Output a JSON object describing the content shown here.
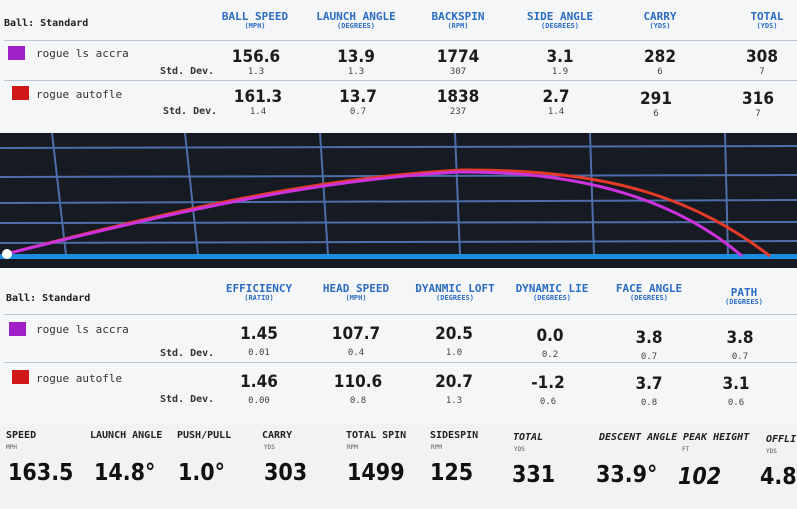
{
  "ball_table": {
    "title": "Ball: Standard",
    "headers": [
      {
        "label": "BALL SPEED",
        "unit": "(MPH)"
      },
      {
        "label": "LAUNCH ANGLE",
        "unit": "(DEGREES)"
      },
      {
        "label": "BACKSPIN",
        "unit": "(RPM)"
      },
      {
        "label": "SIDE ANGLE",
        "unit": "(DEGREES)"
      },
      {
        "label": "CARRY",
        "unit": "(YDS)"
      },
      {
        "label": "TOTAL",
        "unit": "(YDS)"
      }
    ],
    "std_label": "Std. Dev.",
    "rows": [
      {
        "name": "rogue ls accra",
        "color": "#a020c8",
        "values": [
          "156.6",
          "13.9",
          "1774",
          "3.1",
          "282",
          "308"
        ],
        "std": [
          "1.3",
          "1.3",
          "307",
          "1.9",
          "6",
          "7"
        ]
      },
      {
        "name": "rogue autofle",
        "color": "#d01818",
        "values": [
          "161.3",
          "13.7",
          "1838",
          "2.7",
          "291",
          "316"
        ],
        "std": [
          "1.4",
          "0.7",
          "237",
          "1.4",
          "6",
          "7"
        ]
      }
    ]
  },
  "club_table": {
    "title": "Ball: Standard",
    "headers": [
      {
        "label": "EFFICIENCY",
        "unit": "(RATIO)"
      },
      {
        "label": "HEAD SPEED",
        "unit": "(MPH)"
      },
      {
        "label": "DYANMIC LOFT",
        "unit": "(DEGREES)"
      },
      {
        "label": "DYNAMIC LIE",
        "unit": "(DEGREES)"
      },
      {
        "label": "FACE ANGLE",
        "unit": "(DEGREES)"
      },
      {
        "label": "PATH",
        "unit": "(DEGREES)"
      }
    ],
    "std_label": "Std. Dev.",
    "rows": [
      {
        "name": "rogue ls accra",
        "color": "#a020c8",
        "values": [
          "1.45",
          "107.7",
          "20.5",
          "0.0",
          "3.8",
          "3.8"
        ],
        "std": [
          "0.01",
          "0.4",
          "1.0",
          "0.2",
          "0.7",
          "0.7"
        ]
      },
      {
        "name": "rogue autofle",
        "color": "#d01818",
        "values": [
          "1.46",
          "110.6",
          "20.7",
          "-1.2",
          "3.7",
          "3.1"
        ],
        "std": [
          "0.00",
          "0.8",
          "1.3",
          "0.6",
          "0.8",
          "0.6"
        ]
      }
    ]
  },
  "trajectory": {
    "series": [
      {
        "color": "#cc33dd"
      },
      {
        "color": "#e53a28"
      }
    ]
  },
  "shot_strip": {
    "metrics": [
      {
        "label": "SPEED",
        "unit": "MPH",
        "value": "163.5"
      },
      {
        "label": "LAUNCH ANGLE",
        "unit": "",
        "value": "14.8°"
      },
      {
        "label": "PUSH/PULL",
        "unit": "",
        "value": "1.0°"
      },
      {
        "label": "CARRY",
        "unit": "YDS",
        "value": "303"
      },
      {
        "label": "TOTAL SPIN",
        "unit": "RPM",
        "value": "1499"
      },
      {
        "label": "SIDESPIN",
        "unit": "RPM",
        "value": "125"
      },
      {
        "label": "TOTAL",
        "unit": "YDS",
        "value": "331"
      },
      {
        "label": "DESCENT ANGLE",
        "unit": "",
        "value": "33.9°"
      },
      {
        "label": "PEAK HEIGHT",
        "unit": "FT",
        "value": "102"
      },
      {
        "label": "OFFLI",
        "unit": "YDS",
        "value": "4.8"
      }
    ]
  }
}
